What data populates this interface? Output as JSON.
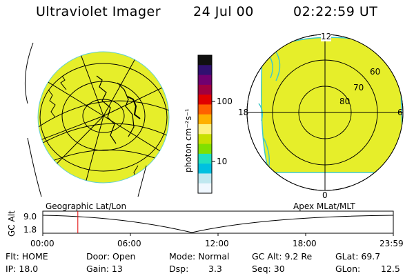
{
  "header": {
    "title": "Ultraviolet Imager",
    "date": "24 Jul 00",
    "time": "02:22:59 UT"
  },
  "left_panel": {
    "caption": "Geographic Lat/Lon",
    "fill_color": "#e6ee2a"
  },
  "right_panel": {
    "caption": "Apex MLat/MLT",
    "mlt_labels": [
      "12",
      "18",
      "6",
      "0"
    ],
    "lat_labels": [
      "60",
      "70",
      "80"
    ],
    "fill_color": "#e6ee2a"
  },
  "colorbar": {
    "unit_label": "photon cm⁻²s⁻¹",
    "tick_labels": [
      "100",
      "10"
    ],
    "colors_top_to_bottom": [
      "#101010",
      "#301070",
      "#700070",
      "#a00040",
      "#e00000",
      "#ff6000",
      "#ffb000",
      "#fff080",
      "#c8e000",
      "#80e000",
      "#20e0c0",
      "#00c0e0",
      "#c0e8f0",
      "#f0f8ff"
    ]
  },
  "timeline": {
    "axis_label": "GC Alt",
    "y_top": "9.0",
    "y_bottom": "1.8",
    "x_ticks": [
      "00:00",
      "06:00",
      "12:00",
      "18:00",
      "23:59"
    ],
    "marker_color": "#e00000",
    "marker_time_fraction": 0.1
  },
  "info_rows": {
    "row1": [
      "Flt: HOME",
      "Door: Open",
      "Mode: Normal",
      "GC Alt: 9.2 Re",
      "GLat: 69.7"
    ],
    "row2": [
      "IP: 18.0",
      "Gain: 13",
      "Dsp:",
      "3.3",
      "Seq: 30",
      "GLon:",
      "12.5"
    ]
  }
}
